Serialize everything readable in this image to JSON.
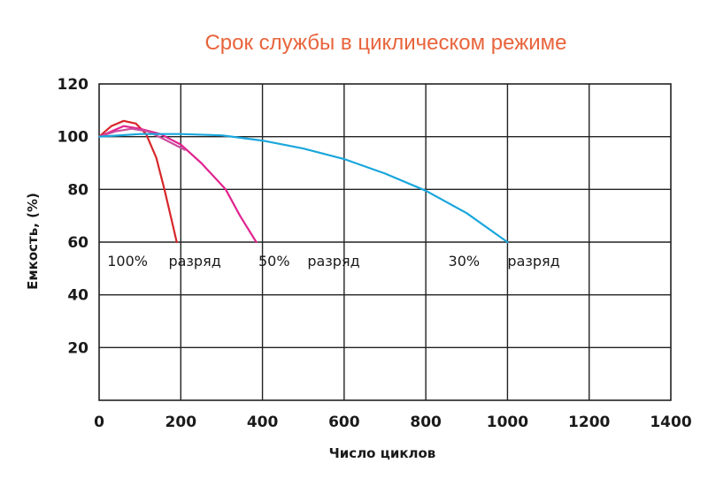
{
  "chart_data": {
    "type": "line",
    "title": "Срок службы в циклическом режиме",
    "xlabel": "Число циклов",
    "ylabel": "Емкость, (%)",
    "xlim": [
      0,
      1400
    ],
    "ylim": [
      0,
      120
    ],
    "xticks": [
      0,
      200,
      400,
      600,
      800,
      1000,
      1200,
      1400
    ],
    "yticks": [
      20,
      40,
      60,
      80,
      100,
      120
    ],
    "grid": true,
    "series": [
      {
        "name": "",
        "color": "#d7262a",
        "x": [
          0,
          30,
          60,
          90,
          115,
          140,
          160,
          175,
          190
        ],
        "y": [
          100,
          104,
          106,
          105,
          101,
          92,
          80,
          70,
          60
        ]
      },
      {
        "name": "",
        "color": "#e0248f",
        "x": [
          0,
          30,
          60,
          100,
          150,
          200,
          250,
          310,
          345,
          385
        ],
        "y": [
          100,
          102,
          104,
          103,
          101,
          97,
          90,
          80,
          70,
          60
        ]
      },
      {
        "name": "",
        "color": "#cc4d9e",
        "x": [
          0,
          40,
          80,
          120,
          160,
          210
        ],
        "y": [
          100,
          102,
          103,
          102,
          99,
          95
        ]
      },
      {
        "name": "",
        "color": "#19a6dc",
        "x": [
          0,
          100,
          200,
          300,
          400,
          500,
          600,
          700,
          800,
          900,
          1000
        ],
        "y": [
          100,
          101,
          101,
          100.5,
          98.5,
          95.5,
          91.5,
          86,
          79.5,
          71,
          60
        ]
      }
    ],
    "annotations": [
      {
        "text": "100%",
        "x": 20,
        "y": 53
      },
      {
        "text": "разряд",
        "x": 170,
        "y": 53
      },
      {
        "text": "50%",
        "x": 390,
        "y": 53
      },
      {
        "text": "разряд",
        "x": 510,
        "y": 53
      },
      {
        "text": "30%",
        "x": 855,
        "y": 53
      },
      {
        "text": "разряд",
        "x": 1000,
        "y": 53
      }
    ]
  }
}
